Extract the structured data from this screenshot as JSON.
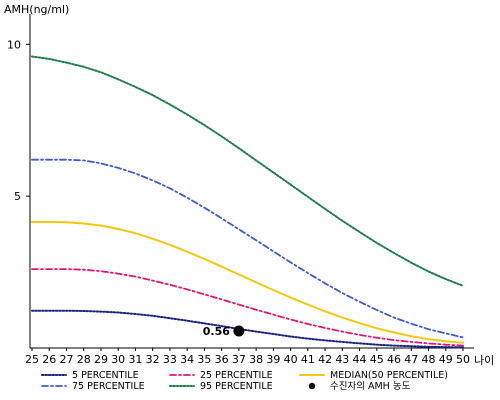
{
  "chart_data": {
    "type": "line",
    "ylabel": "AMH(ng/ml)",
    "xlabel": "나이",
    "x": [
      25,
      26,
      27,
      28,
      29,
      30,
      31,
      32,
      33,
      34,
      35,
      36,
      37,
      38,
      39,
      40,
      41,
      42,
      43,
      44,
      45,
      46,
      47,
      48,
      49,
      50
    ],
    "xlim": [
      25,
      50
    ],
    "ylim": [
      0,
      11
    ],
    "yticks": [
      5,
      10
    ],
    "grid": false,
    "legend_position": "bottom",
    "series": [
      {
        "name": "5 PERCENTILE",
        "color": "#1a237e",
        "style": "dotted",
        "values": [
          1.23,
          1.23,
          1.23,
          1.22,
          1.2,
          1.17,
          1.12,
          1.06,
          0.98,
          0.9,
          0.81,
          0.72,
          0.63,
          0.54,
          0.46,
          0.38,
          0.31,
          0.25,
          0.2,
          0.15,
          0.11,
          0.08,
          0.06,
          0.04,
          0.03,
          0.02
        ]
      },
      {
        "name": "25 PERCENTILE",
        "color": "#e0147a",
        "style": "dashdot",
        "values": [
          2.6,
          2.6,
          2.6,
          2.58,
          2.53,
          2.45,
          2.35,
          2.22,
          2.08,
          1.93,
          1.77,
          1.6,
          1.43,
          1.26,
          1.1,
          0.94,
          0.79,
          0.66,
          0.54,
          0.43,
          0.34,
          0.26,
          0.2,
          0.15,
          0.11,
          0.08
        ]
      },
      {
        "name": "MEDIAN(50 PERCENTILE)",
        "color": "#f2c811",
        "style": "solid",
        "values": [
          4.15,
          4.15,
          4.14,
          4.1,
          4.03,
          3.92,
          3.78,
          3.6,
          3.4,
          3.17,
          2.93,
          2.68,
          2.42,
          2.16,
          1.91,
          1.66,
          1.43,
          1.21,
          1.0,
          0.82,
          0.65,
          0.51,
          0.39,
          0.29,
          0.22,
          0.17
        ]
      },
      {
        "name": "75 PERCENTILE",
        "color": "#3a5bd9",
        "style": "dashdot",
        "values": [
          6.2,
          6.2,
          6.2,
          6.18,
          6.08,
          5.93,
          5.75,
          5.52,
          5.26,
          4.95,
          4.62,
          4.27,
          3.91,
          3.55,
          3.18,
          2.82,
          2.47,
          2.13,
          1.81,
          1.52,
          1.25,
          1.0,
          0.8,
          0.62,
          0.48,
          0.35
        ]
      },
      {
        "name": "95 PERCENTILE",
        "color": "#1e7d4a",
        "style": "dotted",
        "values": [
          9.6,
          9.52,
          9.4,
          9.26,
          9.08,
          8.85,
          8.6,
          8.33,
          8.02,
          7.69,
          7.34,
          6.97,
          6.58,
          6.18,
          5.78,
          5.38,
          4.98,
          4.58,
          4.19,
          3.82,
          3.46,
          3.13,
          2.81,
          2.52,
          2.27,
          2.05
        ]
      }
    ],
    "marker": {
      "name": "수진자의 AMH 농도",
      "x": 37,
      "y": 0.56,
      "label": "0.56",
      "color": "#000000"
    }
  }
}
